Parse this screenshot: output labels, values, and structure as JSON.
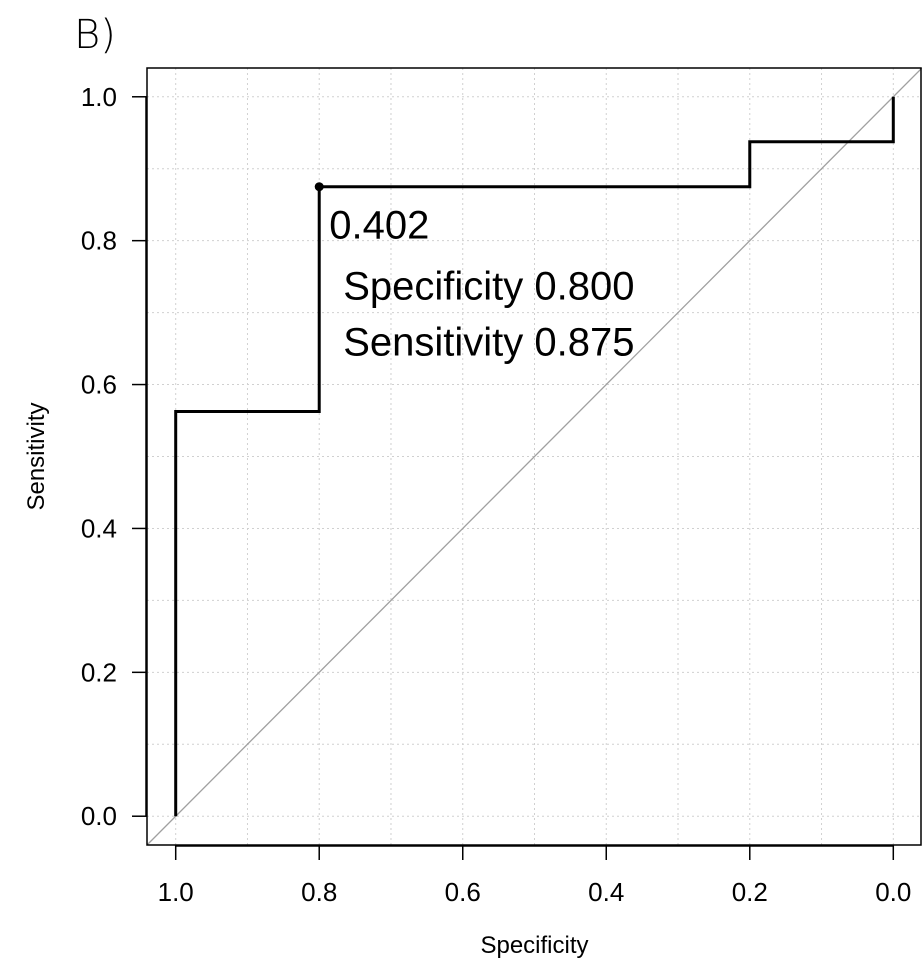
{
  "panel_label": "B)",
  "chart_data": {
    "type": "line",
    "xlabel": "Specificity",
    "ylabel": "Sensitivity",
    "x_reversed": true,
    "xlim": [
      1.04,
      -0.04
    ],
    "ylim": [
      -0.04,
      1.04
    ],
    "x_ticks": [
      "1.0",
      "0.8",
      "0.6",
      "0.4",
      "0.2",
      "0.0"
    ],
    "y_ticks": [
      "0.0",
      "0.2",
      "0.4",
      "0.6",
      "0.8",
      "1.0"
    ],
    "grid": true,
    "reference_line": {
      "from": [
        1.0,
        0.0
      ],
      "to": [
        0.0,
        1.0
      ],
      "color": "#a0a0a0"
    },
    "series": [
      {
        "color": "#000000",
        "specificity": [
          1.0,
          1.0,
          0.8,
          0.8,
          0.2,
          0.2,
          0.0,
          0.0
        ],
        "sensitivity": [
          0.0,
          0.5625,
          0.5625,
          0.875,
          0.875,
          0.9375,
          0.9375,
          1.0
        ]
      }
    ],
    "threshold_point": {
      "specificity": 0.8,
      "sensitivity": 0.875,
      "threshold_label": "0.402",
      "specificity_label": "Specificity 0.800",
      "sensitivity_label": "Sensitivity 0.875"
    }
  }
}
